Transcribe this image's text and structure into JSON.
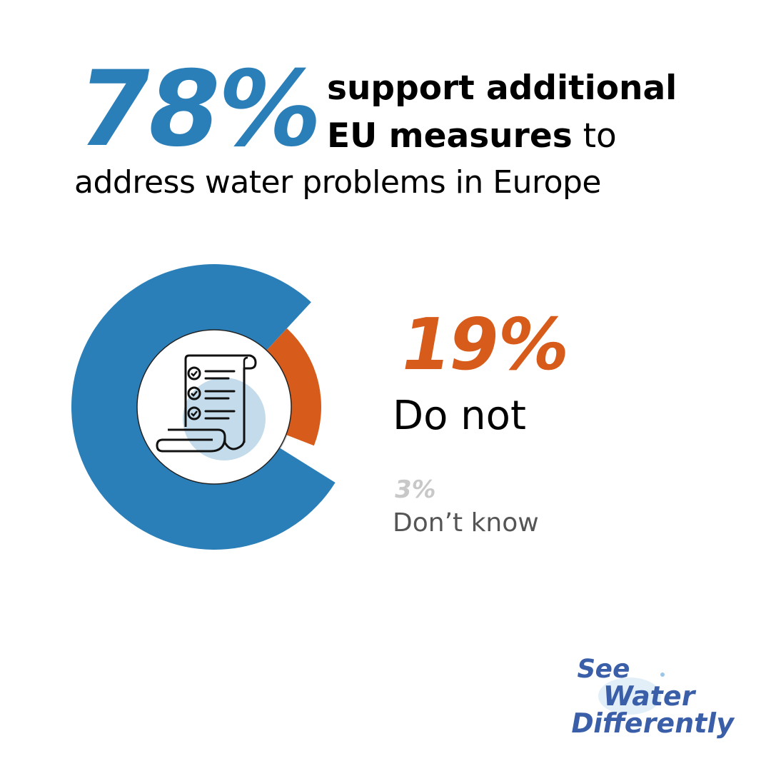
{
  "headline": {
    "percent": "78%",
    "line1": "support additional",
    "line2_bold": "EU measures",
    "line2_rest": " to",
    "line3": "address water problems in Europe"
  },
  "stats": {
    "no_percent": "19%",
    "no_label": "Do not",
    "dk_percent": "3%",
    "dk_label": "Don’t know"
  },
  "logo": {
    "line1": "See",
    "line2": "Water",
    "line3": "Differently"
  },
  "colors": {
    "support": "#2b7fb8",
    "do_not": "#d75b1a",
    "dont_know": "#c8c8c8",
    "logo": "#3a5fa8",
    "icon_circle": "#c3dbea"
  },
  "icon": "checklist-scroll-icon",
  "chart_data": {
    "type": "pie",
    "variant": "donut",
    "categories": [
      "Support",
      "Do not",
      "Don’t know"
    ],
    "values": [
      78,
      19,
      3
    ],
    "unit": "%"
  }
}
